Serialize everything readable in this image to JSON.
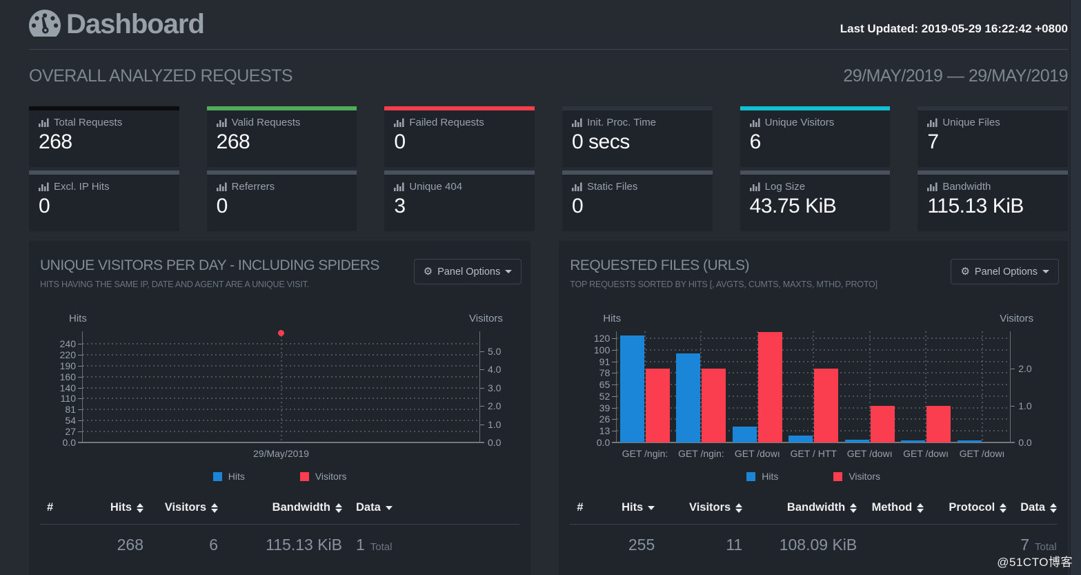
{
  "header": {
    "title": "Dashboard",
    "last_updated": "Last Updated: 2019-05-29 16:22:42 +0800"
  },
  "overview": {
    "title": "OVERALL ANALYZED REQUESTS",
    "date_range": "29/MAY/2019 — 29/MAY/2019",
    "cards": [
      {
        "label": "Total Requests",
        "value": "268",
        "accent": "#0a0c0e"
      },
      {
        "label": "Valid Requests",
        "value": "268",
        "accent": "#50ad5a"
      },
      {
        "label": "Failed Requests",
        "value": "0",
        "accent": "#f43e4e"
      },
      {
        "label": "Init. Proc. Time",
        "value": "0 secs",
        "accent": "#2e343b"
      },
      {
        "label": "Unique Visitors",
        "value": "6",
        "accent": "#12c0d3"
      },
      {
        "label": "Unique Files",
        "value": "7",
        "accent": "#2e343b"
      },
      {
        "label": "Excl. IP Hits",
        "value": "0",
        "accent": "#49525c"
      },
      {
        "label": "Referrers",
        "value": "0",
        "accent": "#49525c"
      },
      {
        "label": "Unique 404",
        "value": "3",
        "accent": "#49525c"
      },
      {
        "label": "Static Files",
        "value": "0",
        "accent": "#49525c"
      },
      {
        "label": "Log Size",
        "value": "43.75 KiB",
        "accent": "#49525c"
      },
      {
        "label": "Bandwidth",
        "value": "115.13 KiB",
        "accent": "#49525c"
      }
    ]
  },
  "panels": [
    {
      "title": "UNIQUE VISITORS PER DAY - INCLUDING SPIDERS",
      "subtitle": "HITS HAVING THE SAME IP, DATE AND AGENT ARE A UNIQUE VISIT.",
      "options_label": "Panel Options",
      "table": {
        "columns": [
          {
            "label": "#",
            "sort": "none",
            "align": "left"
          },
          {
            "label": "Hits",
            "sort": "both",
            "align": "right"
          },
          {
            "label": "Visitors",
            "sort": "both",
            "align": "right"
          },
          {
            "label": "Bandwidth",
            "sort": "both",
            "align": "right"
          },
          {
            "label": "Data",
            "sort": "desc",
            "align": "datacol"
          }
        ],
        "rows": [
          {
            "cells": [
              "",
              "268",
              "6",
              "115.13 KiB"
            ],
            "data": {
              "value": "1",
              "label": "Total"
            }
          }
        ]
      }
    },
    {
      "title": "REQUESTED FILES (URLS)",
      "subtitle": "TOP REQUESTS SORTED BY HITS [, AVGTS, CUMTS, MAXTS, MTHD, PROTO]",
      "options_label": "Panel Options",
      "table": {
        "columns": [
          {
            "label": "#",
            "sort": "none",
            "align": "left"
          },
          {
            "label": "Hits",
            "sort": "desc",
            "align": "right"
          },
          {
            "label": "Visitors",
            "sort": "both",
            "align": "right"
          },
          {
            "label": "Bandwidth",
            "sort": "both",
            "align": "right"
          },
          {
            "label": "Method",
            "sort": "both",
            "align": "right"
          },
          {
            "label": "Protocol",
            "sort": "both",
            "align": "right"
          },
          {
            "label": "Data",
            "sort": "both",
            "align": "datacol"
          }
        ],
        "rows": [
          {
            "cells": [
              "",
              "255",
              "11",
              "108.09 KiB",
              "",
              ""
            ],
            "data": {
              "value": "7",
              "label": "Total"
            }
          }
        ]
      }
    }
  ],
  "chart_data": [
    {
      "type": "scatter",
      "title": "Unique Visitors per Day - Including Spiders",
      "x": [
        "29/May/2019"
      ],
      "series": [
        {
          "name": "Hits",
          "color": "#1b86d8",
          "axis": "left",
          "values": [
            268
          ],
          "point_visible": false
        },
        {
          "name": "Visitors",
          "color": "#fa3e50",
          "axis": "right",
          "values": [
            6
          ],
          "point_visible": true
        }
      ],
      "left_axis": {
        "label": "Hits",
        "ticks": [
          "240",
          "220",
          "190",
          "160",
          "140",
          "110",
          "81",
          "54",
          "27",
          "0.0"
        ]
      },
      "right_axis": {
        "label": "Visitors",
        "ticks": [
          "5.0",
          "4.0",
          "3.0",
          "2.0",
          "1.0",
          "0.0"
        ]
      },
      "grid": "dotted",
      "legend_position": "bottom"
    },
    {
      "type": "bar",
      "title": "Requested Files (URLs)",
      "categories": [
        "GET /ngin:",
        "GET /ngin:",
        "GET /dowı",
        "GET / HTT",
        "GET /dowı",
        "GET /dowı",
        "GET /dowı"
      ],
      "series": [
        {
          "name": "Hits",
          "color": "#1b86d8",
          "axis": "left",
          "values": [
            125,
            97,
            18,
            8,
            3,
            2,
            2
          ]
        },
        {
          "name": "Visitors",
          "color": "#fa3e50",
          "axis": "right",
          "values": [
            2,
            2,
            3,
            2,
            1,
            1,
            0
          ]
        }
      ],
      "left_axis": {
        "label": "Hits",
        "ticks": [
          "120",
          "100",
          "91",
          "78",
          "65",
          "52",
          "39",
          "26",
          "13",
          "0.0"
        ]
      },
      "right_axis": {
        "label": "Visitors",
        "ticks": [
          "2.0",
          "1.0",
          "0.0"
        ]
      },
      "grid": "dotted",
      "legend_position": "bottom"
    }
  ],
  "watermark": "@51CTO博客"
}
